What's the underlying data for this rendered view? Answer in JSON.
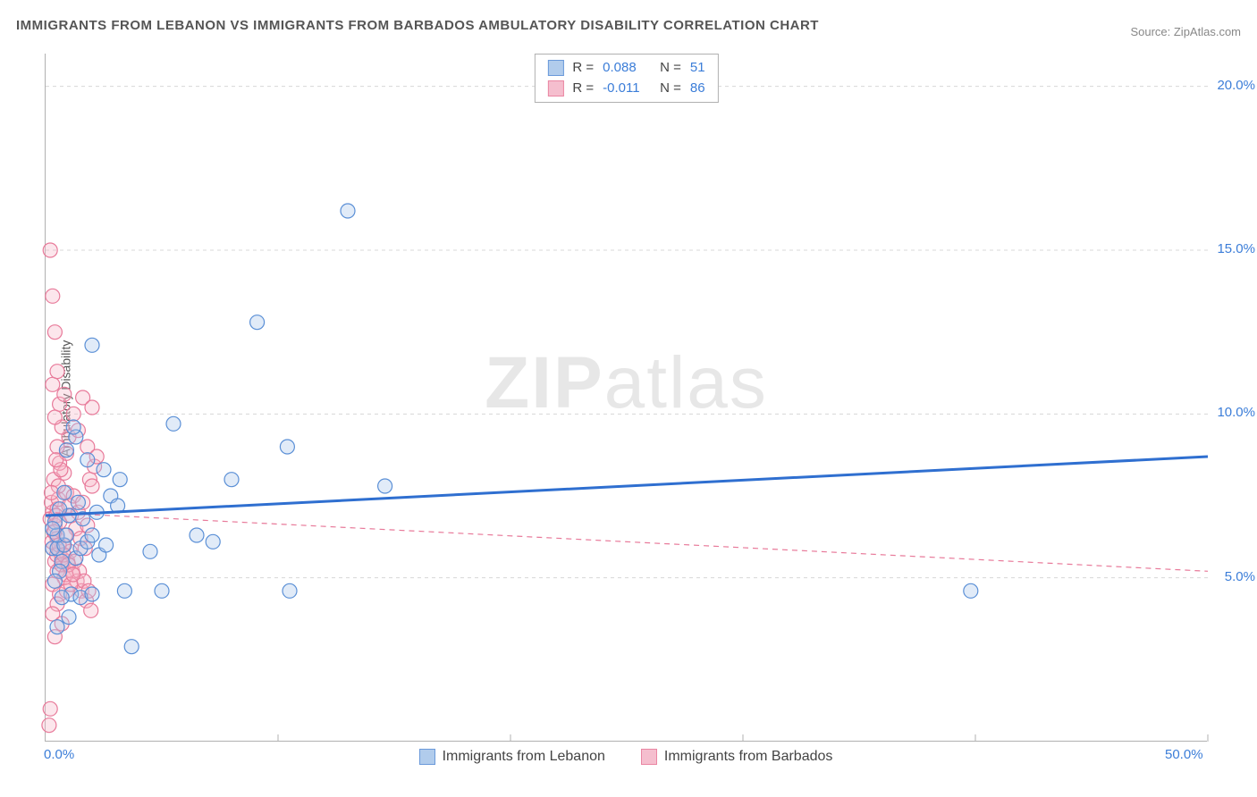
{
  "title": "IMMIGRANTS FROM LEBANON VS IMMIGRANTS FROM BARBADOS AMBULATORY DISABILITY CORRELATION CHART",
  "source": "Source: ZipAtlas.com",
  "ylabel": "Ambulatory Disability",
  "watermark": {
    "bold": "ZIP",
    "light": "atlas"
  },
  "chart": {
    "type": "scatter",
    "background_color": "#ffffff",
    "grid_color": "#d8d8d8",
    "axis_color": "#b0b0b0",
    "xlim": [
      0,
      50
    ],
    "ylim": [
      0,
      21
    ],
    "x_ticks": [
      0,
      10,
      20,
      30,
      40,
      50
    ],
    "x_tick_labels": {
      "0": "0.0%",
      "50": "50.0%"
    },
    "y_grid": [
      5,
      10,
      15,
      20
    ],
    "y_tick_labels": {
      "5": "5.0%",
      "10": "10.0%",
      "15": "15.0%",
      "20": "20.0%"
    },
    "tick_label_color": "#3b7dd8",
    "tick_label_fontsize": 15,
    "marker_radius": 8,
    "marker_stroke_width": 1.2,
    "marker_fill_opacity": 0.35,
    "series": [
      {
        "name": "Immigrants from Lebanon",
        "key": "lebanon",
        "color_stroke": "#5a8fd6",
        "color_fill": "#a9c7eb",
        "R": "0.088",
        "N": "51",
        "trend": {
          "x1": 0,
          "y1": 6.9,
          "x2": 50,
          "y2": 8.7,
          "stroke": "#2f6fd0",
          "width": 3,
          "dash": ""
        },
        "points": [
          [
            0.3,
            5.9
          ],
          [
            0.5,
            5.9
          ],
          [
            0.8,
            6.0
          ],
          [
            0.5,
            6.3
          ],
          [
            0.9,
            6.3
          ],
          [
            0.4,
            6.7
          ],
          [
            1.0,
            6.9
          ],
          [
            0.7,
            5.5
          ],
          [
            1.3,
            5.6
          ],
          [
            1.5,
            5.9
          ],
          [
            1.8,
            6.1
          ],
          [
            2.0,
            6.3
          ],
          [
            2.3,
            5.7
          ],
          [
            2.6,
            6.0
          ],
          [
            2.8,
            7.5
          ],
          [
            3.1,
            7.2
          ],
          [
            3.4,
            4.6
          ],
          [
            1.1,
            4.5
          ],
          [
            1.5,
            4.4
          ],
          [
            2.0,
            4.5
          ],
          [
            3.7,
            2.9
          ],
          [
            4.5,
            5.8
          ],
          [
            5.0,
            4.6
          ],
          [
            5.5,
            9.7
          ],
          [
            1.3,
            9.3
          ],
          [
            2.0,
            12.1
          ],
          [
            13.0,
            16.2
          ],
          [
            9.1,
            12.8
          ],
          [
            10.4,
            9.0
          ],
          [
            6.5,
            6.3
          ],
          [
            7.2,
            6.1
          ],
          [
            8.0,
            8.0
          ],
          [
            14.6,
            7.8
          ],
          [
            10.5,
            4.6
          ],
          [
            39.8,
            4.6
          ],
          [
            2.5,
            8.3
          ],
          [
            3.2,
            8.0
          ],
          [
            1.8,
            8.6
          ],
          [
            0.9,
            8.9
          ],
          [
            1.2,
            9.6
          ],
          [
            0.6,
            5.2
          ],
          [
            0.4,
            4.9
          ],
          [
            0.7,
            4.4
          ],
          [
            1.0,
            3.8
          ],
          [
            0.5,
            3.5
          ],
          [
            1.6,
            6.8
          ],
          [
            2.2,
            7.0
          ],
          [
            0.8,
            7.6
          ],
          [
            1.4,
            7.3
          ],
          [
            0.3,
            6.5
          ],
          [
            0.6,
            7.1
          ]
        ]
      },
      {
        "name": "Immigrants from Barbados",
        "key": "barbados",
        "color_stroke": "#e87a9a",
        "color_fill": "#f5b8c9",
        "R": "-0.011",
        "N": "86",
        "trend": {
          "x1": 0,
          "y1": 7.0,
          "x2": 50,
          "y2": 5.2,
          "stroke": "#e87a9a",
          "width": 1.2,
          "dash": "6 5"
        },
        "points": [
          [
            0.2,
            6.8
          ],
          [
            0.3,
            7.0
          ],
          [
            0.25,
            7.3
          ],
          [
            0.4,
            6.6
          ],
          [
            0.35,
            6.4
          ],
          [
            0.5,
            7.1
          ],
          [
            0.45,
            6.9
          ],
          [
            0.55,
            7.4
          ],
          [
            0.6,
            6.7
          ],
          [
            0.5,
            6.2
          ],
          [
            0.3,
            5.9
          ],
          [
            0.6,
            5.8
          ],
          [
            0.4,
            5.5
          ],
          [
            0.7,
            5.6
          ],
          [
            0.5,
            5.2
          ],
          [
            0.8,
            5.0
          ],
          [
            0.3,
            4.8
          ],
          [
            0.6,
            4.5
          ],
          [
            0.9,
            4.6
          ],
          [
            0.5,
            4.2
          ],
          [
            0.3,
            3.9
          ],
          [
            0.7,
            3.6
          ],
          [
            0.4,
            3.2
          ],
          [
            0.2,
            1.0
          ],
          [
            0.15,
            0.5
          ],
          [
            0.9,
            7.6
          ],
          [
            1.0,
            7.2
          ],
          [
            1.1,
            6.9
          ],
          [
            1.2,
            7.5
          ],
          [
            1.3,
            6.5
          ],
          [
            1.4,
            7.0
          ],
          [
            1.5,
            6.2
          ],
          [
            1.6,
            7.3
          ],
          [
            1.7,
            5.9
          ],
          [
            1.8,
            6.6
          ],
          [
            1.9,
            8.0
          ],
          [
            2.0,
            7.8
          ],
          [
            2.1,
            8.4
          ],
          [
            0.8,
            8.2
          ],
          [
            0.6,
            8.5
          ],
          [
            0.9,
            8.8
          ],
          [
            0.5,
            9.0
          ],
          [
            1.0,
            9.3
          ],
          [
            0.7,
            9.6
          ],
          [
            0.4,
            9.9
          ],
          [
            0.6,
            10.3
          ],
          [
            0.8,
            10.6
          ],
          [
            0.3,
            10.9
          ],
          [
            0.5,
            11.3
          ],
          [
            0.4,
            12.5
          ],
          [
            0.3,
            13.6
          ],
          [
            0.2,
            15.0
          ],
          [
            1.2,
            10.0
          ],
          [
            1.4,
            9.5
          ],
          [
            1.6,
            10.5
          ],
          [
            1.8,
            9.0
          ],
          [
            2.0,
            10.2
          ],
          [
            2.2,
            8.7
          ],
          [
            0.35,
            8.0
          ],
          [
            0.55,
            7.8
          ],
          [
            0.25,
            7.6
          ],
          [
            0.65,
            8.3
          ],
          [
            0.45,
            8.6
          ],
          [
            0.75,
            6.0
          ],
          [
            0.85,
            6.3
          ],
          [
            0.95,
            5.5
          ],
          [
            1.05,
            5.8
          ],
          [
            1.15,
            5.2
          ],
          [
            1.25,
            5.5
          ],
          [
            1.35,
            4.9
          ],
          [
            1.45,
            5.2
          ],
          [
            1.55,
            4.6
          ],
          [
            1.65,
            4.9
          ],
          [
            1.75,
            4.3
          ],
          [
            1.85,
            4.6
          ],
          [
            1.95,
            4.0
          ],
          [
            0.28,
            6.1
          ],
          [
            0.38,
            6.4
          ],
          [
            0.48,
            5.7
          ],
          [
            0.58,
            6.0
          ],
          [
            0.68,
            5.4
          ],
          [
            0.78,
            5.7
          ],
          [
            0.88,
            5.1
          ],
          [
            0.98,
            5.4
          ],
          [
            1.08,
            4.8
          ],
          [
            1.18,
            5.1
          ]
        ]
      }
    ]
  },
  "legend_top": {
    "R_label": "R =",
    "N_label": "N =",
    "text_color": "#444",
    "value_color": "#3b7dd8"
  },
  "legend_bottom_label_color": "#444"
}
